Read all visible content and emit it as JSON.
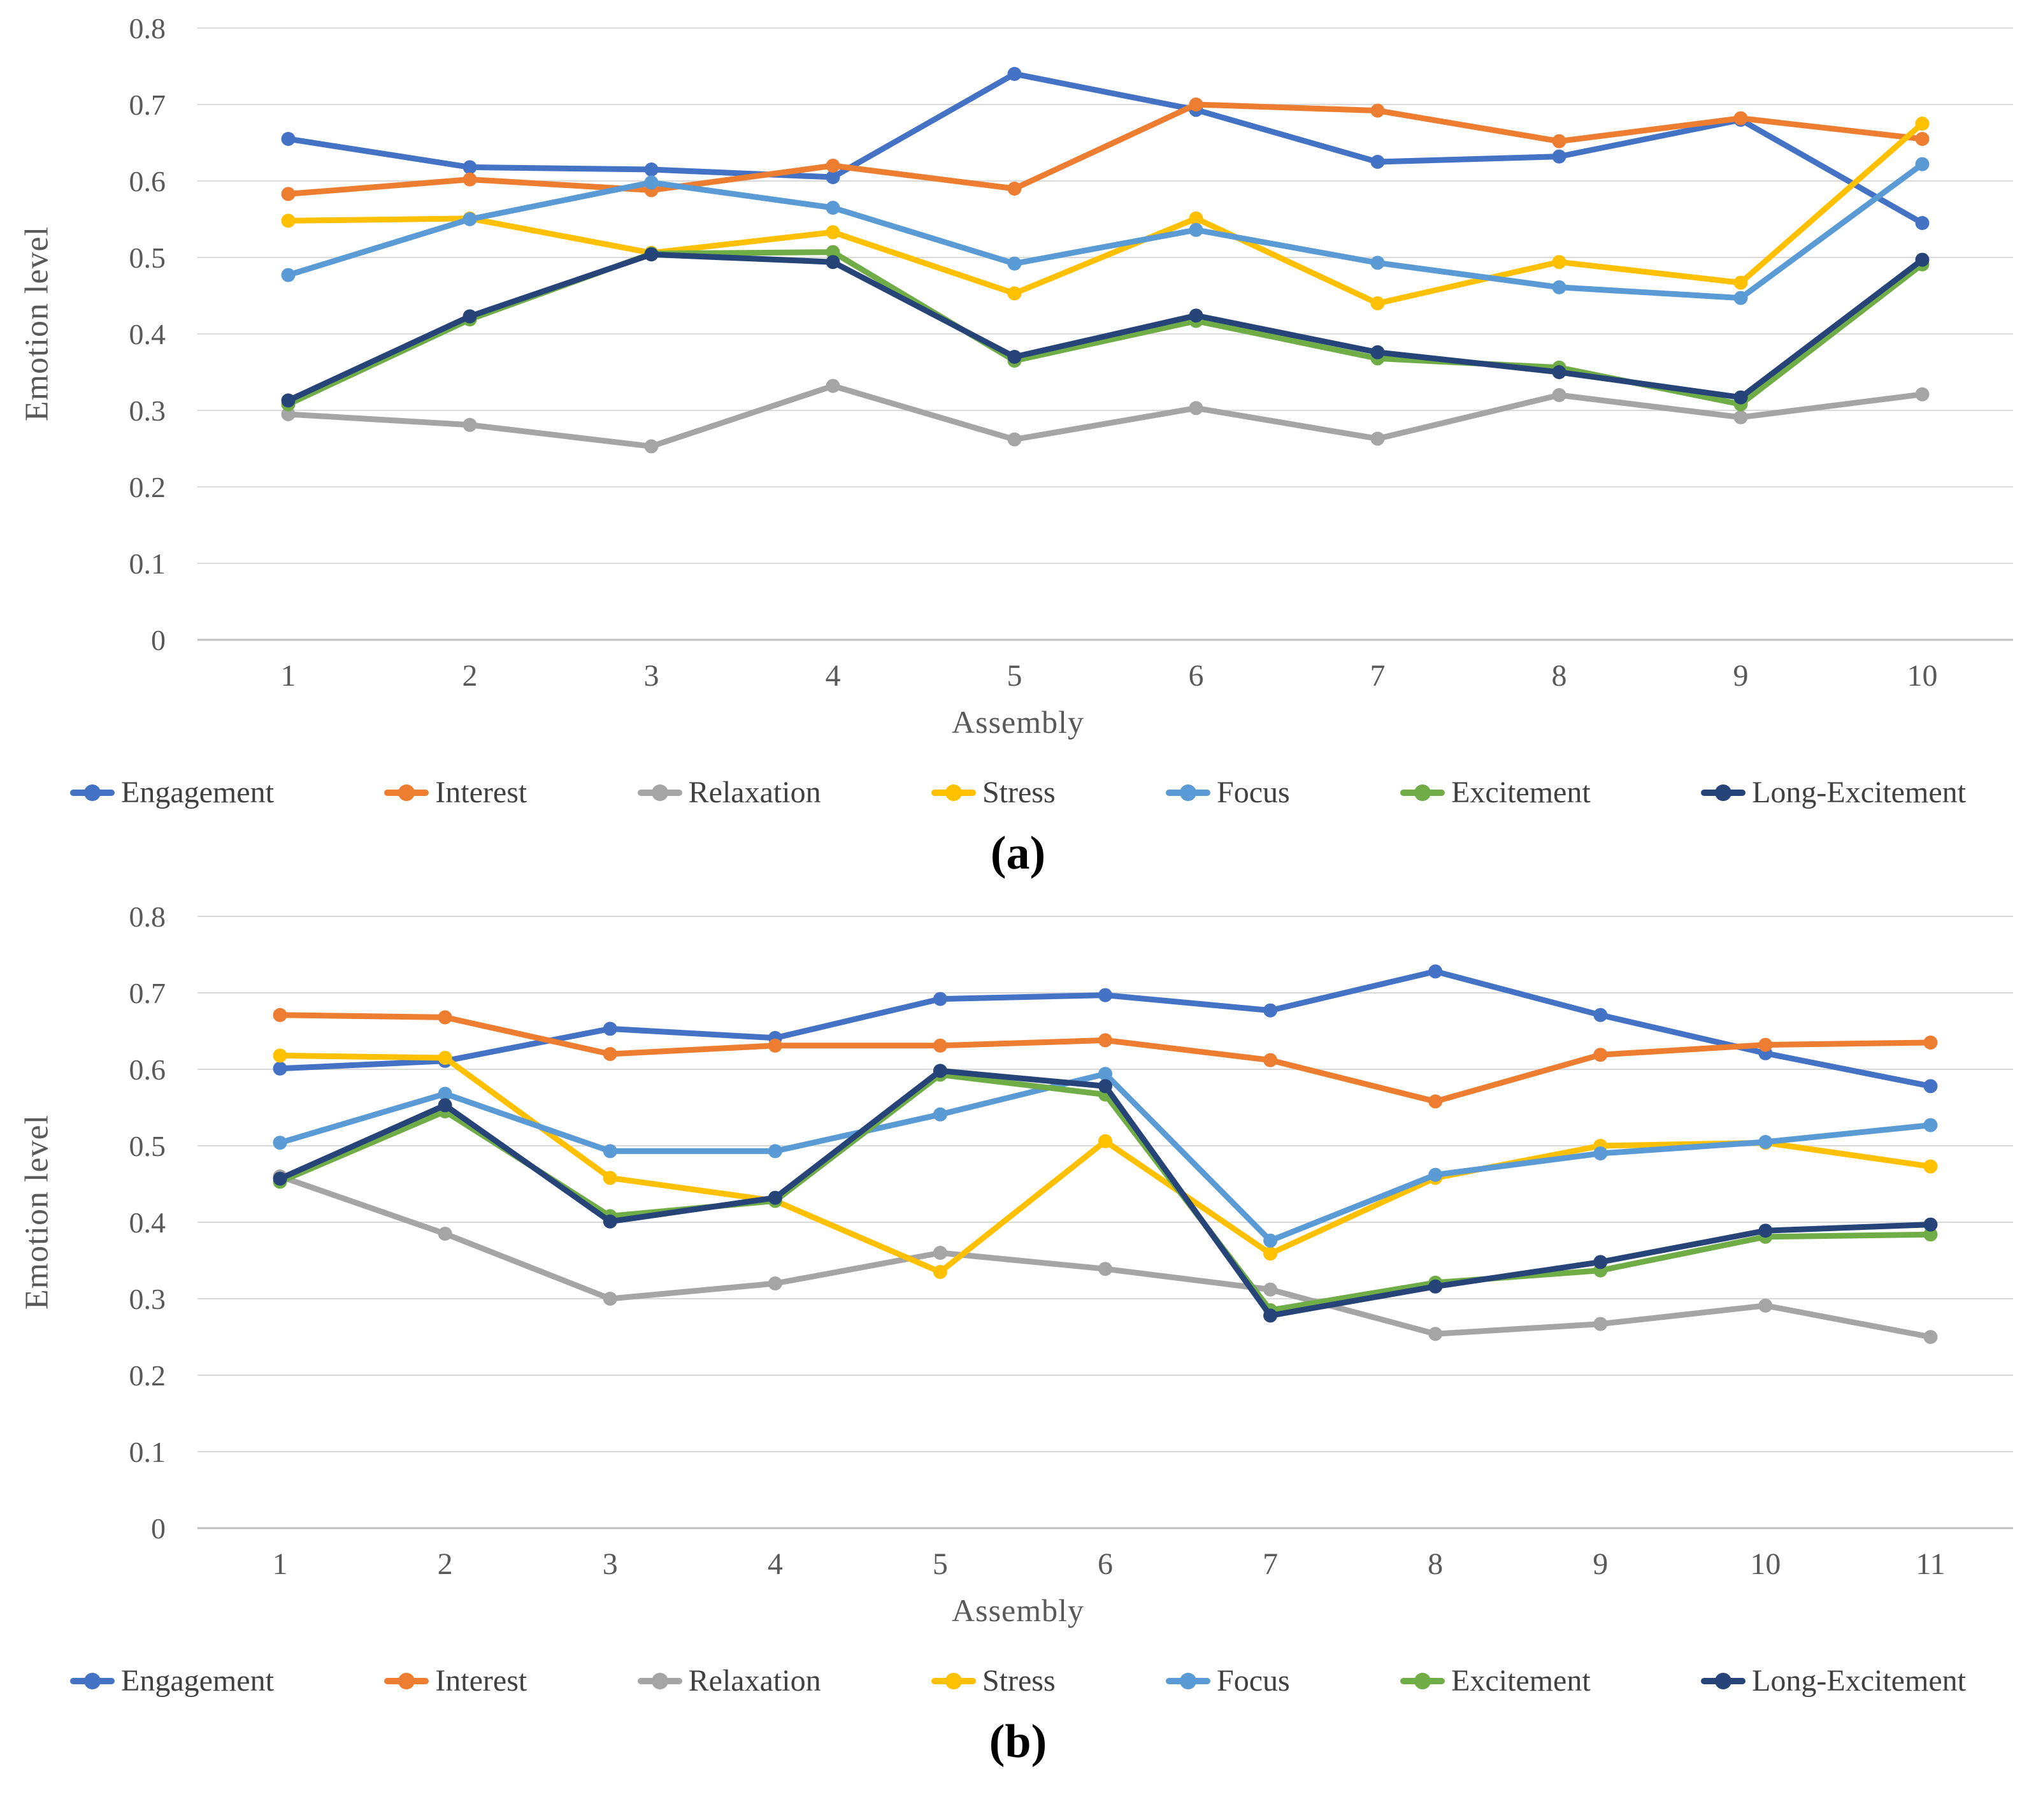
{
  "figure": {
    "caption_a": "(a)",
    "caption_b": "(b)"
  },
  "chart_data": [
    {
      "type": "line",
      "caption": "(a)",
      "xlabel": "Assembly",
      "ylabel": "Emotion level",
      "ylim": [
        0,
        0.8
      ],
      "grid": true,
      "legend_position": "bottom",
      "yticks": [
        0,
        0.1,
        0.2,
        0.3,
        0.4,
        0.5,
        0.6,
        0.7,
        0.8
      ],
      "ytick_labels": [
        "0",
        "0.1",
        "0.2",
        "0.3",
        "0.4",
        "0.5",
        "0.6",
        "0.7",
        "0.8"
      ],
      "categories": [
        "1",
        "2",
        "3",
        "4",
        "5",
        "6",
        "7",
        "8",
        "9",
        "10"
      ],
      "series": [
        {
          "name": "Engagement",
          "color": "#4472C4",
          "values": [
            0.655,
            0.618,
            0.615,
            0.605,
            0.74,
            0.693,
            0.625,
            0.632,
            0.68,
            0.545
          ]
        },
        {
          "name": "Interest",
          "color": "#ED7D31",
          "values": [
            0.583,
            0.602,
            0.588,
            0.62,
            0.59,
            0.7,
            0.692,
            0.652,
            0.682,
            0.655
          ]
        },
        {
          "name": "Relaxation",
          "color": "#A5A5A5",
          "values": [
            0.295,
            0.281,
            0.253,
            0.332,
            0.262,
            0.303,
            0.263,
            0.32,
            0.291,
            0.321
          ]
        },
        {
          "name": "Stress",
          "color": "#FFC000",
          "values": [
            0.548,
            0.551,
            0.506,
            0.533,
            0.453,
            0.551,
            0.44,
            0.494,
            0.467,
            0.675
          ]
        },
        {
          "name": "Focus",
          "color": "#5B9BD5",
          "values": [
            0.477,
            0.55,
            0.598,
            0.565,
            0.492,
            0.536,
            0.493,
            0.461,
            0.447,
            0.622
          ]
        },
        {
          "name": "Excitement",
          "color": "#70AD47",
          "values": [
            0.308,
            0.419,
            0.505,
            0.507,
            0.365,
            0.417,
            0.368,
            0.356,
            0.308,
            0.491
          ]
        },
        {
          "name": "Long-Excitement",
          "color": "#264478",
          "values": [
            0.313,
            0.423,
            0.504,
            0.494,
            0.37,
            0.424,
            0.376,
            0.35,
            0.317,
            0.497
          ]
        }
      ]
    },
    {
      "type": "line",
      "caption": "(b)",
      "xlabel": "Assembly",
      "ylabel": "Emotion level",
      "ylim": [
        0,
        0.8
      ],
      "grid": true,
      "legend_position": "bottom",
      "yticks": [
        0,
        0.1,
        0.2,
        0.3,
        0.4,
        0.5,
        0.6,
        0.7,
        0.8
      ],
      "ytick_labels": [
        "0",
        "0.1",
        "0.2",
        "0.3",
        "0.4",
        "0.5",
        "0.6",
        "0.7",
        "0.8"
      ],
      "categories": [
        "1",
        "2",
        "3",
        "4",
        "5",
        "6",
        "7",
        "8",
        "9",
        "10",
        "11"
      ],
      "series": [
        {
          "name": "Engagement",
          "color": "#4472C4",
          "values": [
            0.601,
            0.611,
            0.653,
            0.641,
            0.692,
            0.697,
            0.677,
            0.728,
            0.671,
            0.621,
            0.578
          ]
        },
        {
          "name": "Interest",
          "color": "#ED7D31",
          "values": [
            0.671,
            0.668,
            0.62,
            0.631,
            0.631,
            0.638,
            0.612,
            0.558,
            0.619,
            0.632,
            0.635
          ]
        },
        {
          "name": "Relaxation",
          "color": "#A5A5A5",
          "values": [
            0.46,
            0.385,
            0.3,
            0.32,
            0.36,
            0.339,
            0.312,
            0.254,
            0.267,
            0.291,
            0.25
          ]
        },
        {
          "name": "Stress",
          "color": "#FFC000",
          "values": [
            0.618,
            0.615,
            0.458,
            0.428,
            0.335,
            0.506,
            0.359,
            0.458,
            0.5,
            0.504,
            0.473
          ]
        },
        {
          "name": "Focus",
          "color": "#5B9BD5",
          "values": [
            0.504,
            0.568,
            0.493,
            0.493,
            0.541,
            0.594,
            0.376,
            0.462,
            0.49,
            0.505,
            0.527
          ]
        },
        {
          "name": "Excitement",
          "color": "#70AD47",
          "values": [
            0.453,
            0.545,
            0.408,
            0.428,
            0.593,
            0.567,
            0.285,
            0.321,
            0.337,
            0.381,
            0.384
          ]
        },
        {
          "name": "Long-Excitement",
          "color": "#264478",
          "values": [
            0.457,
            0.553,
            0.401,
            0.432,
            0.598,
            0.578,
            0.278,
            0.316,
            0.348,
            0.389,
            0.397
          ]
        }
      ]
    }
  ]
}
